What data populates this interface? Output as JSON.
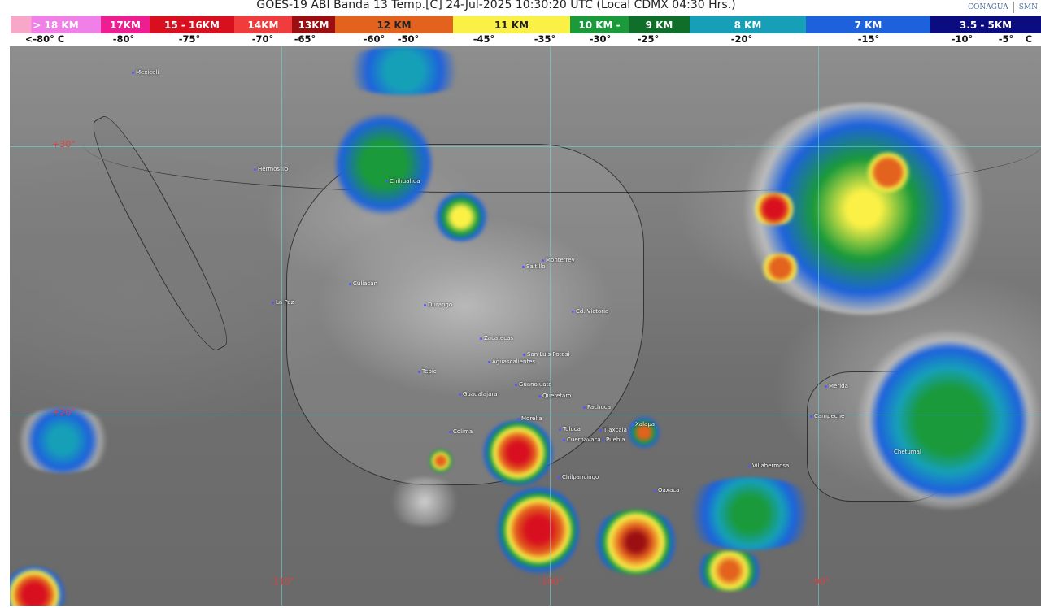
{
  "header": {
    "title": "GOES-19 ABI Banda 13 Temp.[C] 24-Jul-2025 10:30:20 UTC (Local CDMX  04:30 Hrs.)",
    "logos": [
      "CONAGUA",
      "SMN"
    ]
  },
  "legend": {
    "segments": [
      {
        "label": "> 18 KM",
        "color": "#f080e8"
      },
      {
        "label": "17KM",
        "color": "#ee1d92"
      },
      {
        "label": "15 - 16KM",
        "color": "#d80f1f"
      },
      {
        "label": "14KM",
        "color": "#f03c3c"
      },
      {
        "label": "13KM",
        "color": "#9b0e12"
      },
      {
        "label": "12 KM",
        "color": "#e2621e"
      },
      {
        "label": "11 KM",
        "color": "#fbf046"
      },
      {
        "label": "10 KM -",
        "color": "#1a9a3a"
      },
      {
        "label": "9 KM",
        "color": "#0f6e2a"
      },
      {
        "label": "8 KM",
        "color": "#16a0b8"
      },
      {
        "label": "7 KM",
        "color": "#1d62dc"
      },
      {
        "label": "3.5 - 5KM",
        "color": "#0b0c80"
      }
    ],
    "temps": [
      "<-80° C",
      "-80°",
      "-75°",
      "-70°",
      "-65°",
      "-60°",
      "-50°",
      "-45°",
      "-35°",
      "-30°",
      "-25°",
      "-20°",
      "-15°",
      "-10°",
      "-5°",
      "C"
    ]
  },
  "map": {
    "latitudes": [
      "+30°",
      "+20°"
    ],
    "longitudes": [
      "-110°",
      "-100°",
      "-90°"
    ],
    "cities": [
      "Mexicali",
      "Hermosillo",
      "Chihuahua",
      "La Paz",
      "Culiacan",
      "Durango",
      "Saltillo",
      "Monterrey",
      "Cd. Victoria",
      "Zacatecas",
      "San Luis Potosi",
      "Aguascalientes",
      "Tepic",
      "Guadalajara",
      "Guanajuato",
      "Queretaro",
      "Pachuca",
      "Morelia",
      "Colima",
      "Toluca",
      "Tlaxcala",
      "Cuernavaca",
      "Puebla",
      "Xalapa",
      "Chilpancingo",
      "Oaxaca",
      "Villahermosa",
      "Campeche",
      "Merida",
      "Chetumal"
    ]
  }
}
